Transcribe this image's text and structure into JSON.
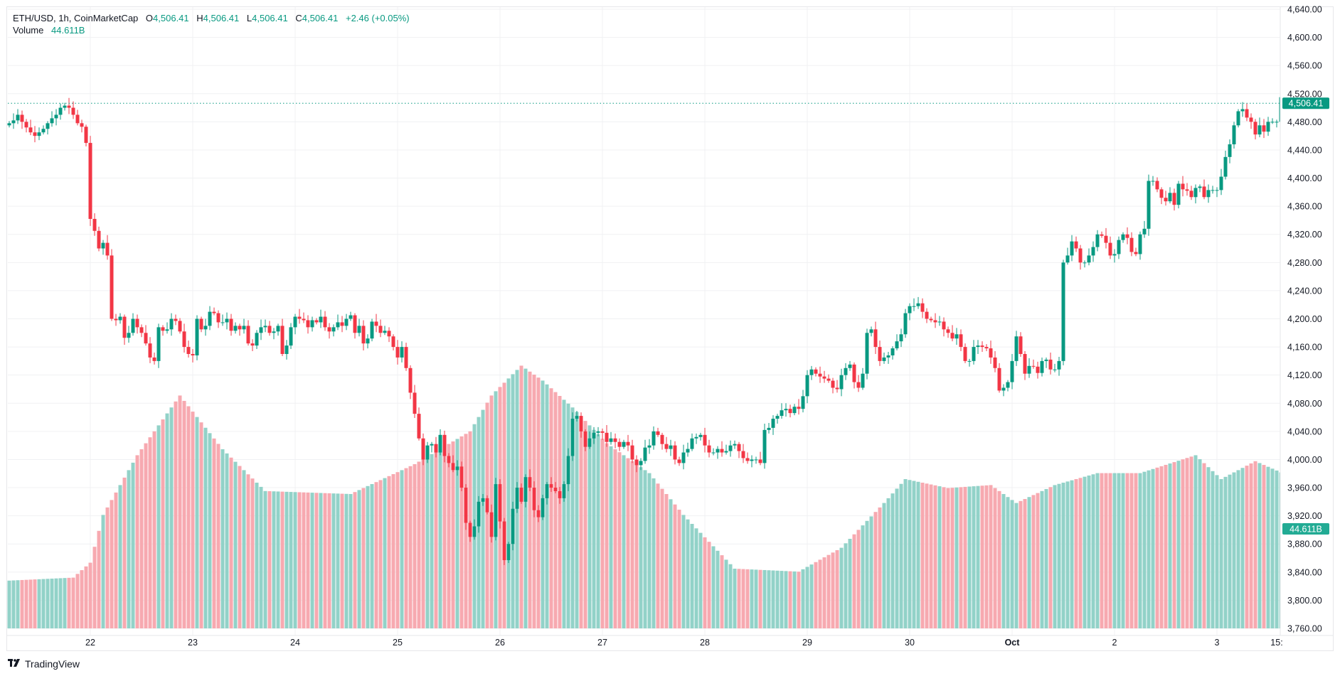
{
  "legend": {
    "symbol": "ETH/USD, 1h, CoinMarketCap",
    "open_label": "O",
    "open": "4,506.41",
    "high_label": "H",
    "high": "4,506.41",
    "low_label": "L",
    "low": "4,506.41",
    "close_label": "C",
    "close": "4,506.41",
    "change": "+2.46 (+0.05%)",
    "volume_label": "Volume",
    "volume": "44.611B"
  },
  "branding": {
    "logo_icon": "tradingview-logo-icon",
    "name": "TradingView"
  },
  "colors": {
    "up": "#089981",
    "down": "#f23645",
    "up_volume": "#92d2c8",
    "down_volume": "#f7a9b0",
    "grid": "#f0f1f3",
    "text": "#131722"
  },
  "chart_data": {
    "type": "candlestick",
    "title": "ETH/USD, 1h, CoinMarketCap",
    "xlabel": "",
    "ylabel": "",
    "ylim": [
      3760,
      4640
    ],
    "y_ticks": [
      "4,640.00",
      "4,600.00",
      "4,560.00",
      "4,520.00",
      "4,480.00",
      "4,440.00",
      "4,400.00",
      "4,360.00",
      "4,320.00",
      "4,280.00",
      "4,240.00",
      "4,200.00",
      "4,160.00",
      "4,120.00",
      "4,080.00",
      "4,040.00",
      "4,000.00",
      "3,960.00",
      "3,920.00",
      "3,880.00",
      "3,840.00",
      "3,800.00",
      "3,760.00"
    ],
    "x_ticks": [
      {
        "label": "22",
        "hour": 19
      },
      {
        "label": "23",
        "hour": 43
      },
      {
        "label": "24",
        "hour": 67
      },
      {
        "label": "25",
        "hour": 91
      },
      {
        "label": "26",
        "hour": 115
      },
      {
        "label": "27",
        "hour": 139
      },
      {
        "label": "28",
        "hour": 163
      },
      {
        "label": "29",
        "hour": 187
      },
      {
        "label": "30",
        "hour": 211
      },
      {
        "label": "Oct",
        "hour": 235,
        "bold": true
      },
      {
        "label": "2",
        "hour": 259
      },
      {
        "label": "3",
        "hour": 283
      },
      {
        "label": "15:",
        "hour": 297
      }
    ],
    "last_price": {
      "value": 4506.41,
      "label": "4,506.41"
    },
    "last_volume_label": "44.611B",
    "closes": [
      4478,
      4482,
      4490,
      4480,
      4472,
      4465,
      4460,
      4465,
      4470,
      4478,
      4485,
      4490,
      4500,
      4503,
      4500,
      4490,
      4478,
      4473,
      4450,
      4342,
      4325,
      4300,
      4308,
      4290,
      4200,
      4198,
      4203,
      4173,
      4180,
      4200,
      4188,
      4180,
      4165,
      4145,
      4140,
      4188,
      4183,
      4185,
      4200,
      4197,
      4182,
      4160,
      4150,
      4148,
      4200,
      4185,
      4190,
      4210,
      4208,
      4195,
      4195,
      4200,
      4183,
      4190,
      4185,
      4190,
      4165,
      4162,
      4180,
      4188,
      4190,
      4180,
      4182,
      4190,
      4150,
      4162,
      4188,
      4203,
      4200,
      4198,
      4188,
      4198,
      4195,
      4203,
      4188,
      4182,
      4188,
      4195,
      4190,
      4200,
      4205,
      4180,
      4190,
      4165,
      4172,
      4196,
      4190,
      4180,
      4183,
      4175,
      4160,
      4145,
      4160,
      4130,
      4095,
      4065,
      4030,
      4000,
      4020,
      4022,
      4010,
      4035,
      4005,
      3995,
      3985,
      3990,
      3960,
      3910,
      3890,
      3905,
      3940,
      3945,
      3925,
      3890,
      3965,
      3912,
      3857,
      3880,
      3930,
      3960,
      3940,
      3975,
      3960,
      3928,
      3918,
      3945,
      3965,
      3960,
      3955,
      3945,
      3965,
      4005,
      4058,
      4062,
      4040,
      4018,
      4030,
      4038,
      4040,
      4038,
      4025,
      4030,
      4025,
      4018,
      4025,
      4020,
      4000,
      3992,
      3998,
      4017,
      4020,
      4040,
      4035,
      4022,
      4015,
      4020,
      4000,
      3995,
      4010,
      4015,
      4030,
      4032,
      4035,
      4020,
      4010,
      4010,
      4015,
      4010,
      4012,
      4020,
      4022,
      4012,
      4002,
      3998,
      4000,
      4000,
      3995,
      4042,
      4045,
      4058,
      4062,
      4070,
      4072,
      4066,
      4075,
      4072,
      4090,
      4120,
      4128,
      4122,
      4118,
      4115,
      4112,
      4102,
      4100,
      4120,
      4130,
      4135,
      4110,
      4102,
      4122,
      4180,
      4185,
      4160,
      4140,
      4145,
      4148,
      4158,
      4168,
      4178,
      4208,
      4218,
      4218,
      4222,
      4210,
      4200,
      4198,
      4195,
      4196,
      4185,
      4180,
      4172,
      4178,
      4160,
      4140,
      4140,
      4160,
      4162,
      4160,
      4158,
      4145,
      4130,
      4098,
      4102,
      4110,
      4140,
      4175,
      4150,
      4122,
      4133,
      4132,
      4123,
      4140,
      4142,
      4128,
      4128,
      4140,
      4280,
      4290,
      4310,
      4300,
      4280,
      4280,
      4290,
      4302,
      4320,
      4318,
      4308,
      4290,
      4292,
      4312,
      4320,
      4315,
      4295,
      4292,
      4320,
      4328,
      4396,
      4396,
      4384,
      4372,
      4367,
      4379,
      4362,
      4392,
      4384,
      4382,
      4373,
      4386,
      4388,
      4373,
      4383,
      4383,
      4383,
      4402,
      4430,
      4448,
      4475,
      4495,
      4498,
      4486,
      4480,
      4462,
      4475,
      4466,
      4480,
      4480,
      4480,
      4515,
      4506.41
    ],
    "volume_profile": "Volume bars (relative heights) shown below price; last bar 44.611B"
  }
}
